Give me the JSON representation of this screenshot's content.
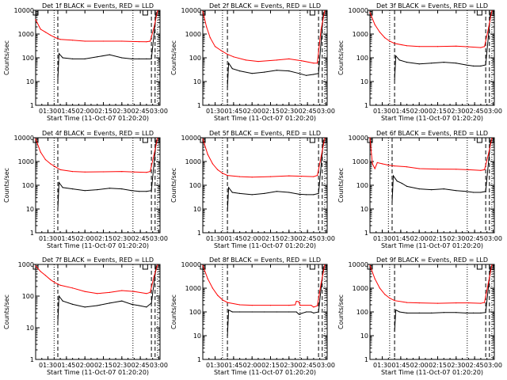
{
  "figure": {
    "background": "#ffffff",
    "colors": {
      "events": "#000000",
      "lld": "#ff0000",
      "axes": "#000000"
    }
  },
  "chart_data": [
    {
      "type": "line",
      "title": "Det 1f BLACK = Events, RED = LLD",
      "xlabel": "Start Time (11-Oct-07 01:20:20)",
      "ylabel": "Counts/sec",
      "xlim": [
        "01:20",
        "03:01"
      ],
      "ylim": [
        1,
        10000
      ],
      "log_y": true,
      "x_ticks": [
        "01:30",
        "01:45",
        "02:00",
        "02:15",
        "02:30",
        "02:45",
        "03:00"
      ],
      "y_ticks": [
        "1",
        "10",
        "100",
        "1000",
        "10000"
      ],
      "vlines_dotted": [
        "01:35",
        "02:39",
        "02:59"
      ],
      "vlines_dashed": [
        "01:38",
        "02:54",
        "02:57"
      ],
      "markers": [
        "01:20",
        "02:49",
        "02:59"
      ],
      "series": [
        {
          "name": "Events",
          "color": "#000000",
          "x": [
            "01:38",
            "01:39",
            "01:42",
            "01:50",
            "02:00",
            "02:10",
            "02:20",
            "02:30",
            "02:38",
            "02:44",
            "02:50",
            "02:54",
            "02:58"
          ],
          "y": [
            12,
            150,
            100,
            90,
            90,
            110,
            135,
            100,
            90,
            90,
            90,
            90,
            8000
          ]
        },
        {
          "name": "LLD",
          "color": "#ff0000",
          "x": [
            "01:20",
            "01:24",
            "01:28",
            "01:32",
            "01:36",
            "01:40",
            "01:50",
            "02:00",
            "02:15",
            "02:30",
            "02:44",
            "02:50",
            "02:53",
            "02:56",
            "02:59"
          ],
          "y": [
            4000,
            1600,
            1200,
            900,
            700,
            600,
            550,
            500,
            500,
            500,
            480,
            470,
            500,
            1800,
            9500
          ]
        }
      ]
    },
    {
      "type": "line",
      "title": "Det 2f BLACK = Events, RED = LLD",
      "xlabel": "Start Time (11-Oct-07 01:20:20)",
      "ylabel": "Counts/sec",
      "xlim": [
        "01:20",
        "03:01"
      ],
      "ylim": [
        1,
        10000
      ],
      "log_y": true,
      "x_ticks": [
        "01:30",
        "01:45",
        "02:00",
        "02:15",
        "02:30",
        "02:45",
        "03:00"
      ],
      "y_ticks": [
        "1",
        "10",
        "100",
        "1000",
        "10000"
      ],
      "vlines_dotted": [
        "01:36",
        "02:39",
        "02:59"
      ],
      "vlines_dashed": [
        "01:40",
        "02:54",
        "02:57"
      ],
      "markers": [
        "01:20",
        "02:49",
        "02:59"
      ],
      "series": [
        {
          "name": "Events",
          "color": "#000000",
          "x": [
            "01:40",
            "01:41",
            "01:44",
            "01:50",
            "02:00",
            "02:10",
            "02:20",
            "02:30",
            "02:38",
            "02:44",
            "02:50",
            "02:54",
            "02:58"
          ],
          "y": [
            6,
            60,
            35,
            28,
            22,
            25,
            30,
            28,
            22,
            18,
            20,
            22,
            8000
          ]
        },
        {
          "name": "LLD",
          "color": "#ff0000",
          "x": [
            "01:20",
            "01:23",
            "01:26",
            "01:30",
            "01:35",
            "01:40",
            "01:45",
            "01:55",
            "02:05",
            "02:20",
            "02:30",
            "02:40",
            "02:50",
            "02:53",
            "02:56",
            "02:59"
          ],
          "y": [
            9000,
            2000,
            700,
            300,
            200,
            140,
            110,
            80,
            70,
            80,
            90,
            75,
            60,
            60,
            1500,
            9500
          ]
        }
      ]
    },
    {
      "type": "line",
      "title": "Det 3f BLACK = Events, RED = LLD",
      "xlabel": "Start Time (11-Oct-07 01:20:20)",
      "ylabel": "Counts/sec",
      "xlim": [
        "01:20",
        "03:01"
      ],
      "ylim": [
        1,
        10000
      ],
      "log_y": true,
      "x_ticks": [
        "01:30",
        "01:45",
        "02:00",
        "02:15",
        "02:30",
        "02:45",
        "03:00"
      ],
      "y_ticks": [
        "1",
        "10",
        "100",
        "1000",
        "10000"
      ],
      "vlines_dotted": [
        "01:36",
        "02:39",
        "02:59"
      ],
      "vlines_dashed": [
        "01:40",
        "02:54",
        "02:57"
      ],
      "markers": [
        "01:20",
        "02:49",
        "02:59"
      ],
      "series": [
        {
          "name": "Events",
          "color": "#000000",
          "x": [
            "01:40",
            "01:41",
            "01:44",
            "01:50",
            "02:00",
            "02:10",
            "02:20",
            "02:30",
            "02:38",
            "02:44",
            "02:50",
            "02:54",
            "02:58"
          ],
          "y": [
            12,
            120,
            80,
            65,
            55,
            60,
            65,
            60,
            50,
            45,
            45,
            50,
            8000
          ]
        },
        {
          "name": "LLD",
          "color": "#ff0000",
          "x": [
            "01:20",
            "01:24",
            "01:28",
            "01:32",
            "01:36",
            "01:40",
            "01:50",
            "02:00",
            "02:15",
            "02:30",
            "02:40",
            "02:50",
            "02:53",
            "02:56",
            "02:59"
          ],
          "y": [
            8000,
            2500,
            1200,
            700,
            500,
            400,
            320,
            300,
            300,
            310,
            290,
            270,
            300,
            1500,
            9500
          ]
        }
      ]
    },
    {
      "type": "line",
      "title": "Det 4f BLACK = Events, RED = LLD",
      "xlabel": "Start Time (11-Oct-07 01:20:20)",
      "ylabel": "Counts/sec",
      "xlim": [
        "01:20",
        "03:01"
      ],
      "ylim": [
        1,
        10000
      ],
      "log_y": true,
      "x_ticks": [
        "01:30",
        "01:45",
        "02:00",
        "02:15",
        "02:30",
        "02:45",
        "03:00"
      ],
      "y_ticks": [
        "1",
        "10",
        "100",
        "1000",
        "10000"
      ],
      "vlines_dotted": [
        "01:35",
        "02:39",
        "02:59"
      ],
      "vlines_dashed": [
        "01:38",
        "02:54",
        "02:57"
      ],
      "markers": [
        "01:20",
        "02:49",
        "02:59"
      ],
      "series": [
        {
          "name": "Events",
          "color": "#000000",
          "x": [
            "01:38",
            "01:39",
            "01:42",
            "01:50",
            "02:00",
            "02:10",
            "02:20",
            "02:30",
            "02:38",
            "02:44",
            "02:50",
            "02:54",
            "02:58"
          ],
          "y": [
            10,
            130,
            80,
            70,
            60,
            65,
            75,
            70,
            60,
            55,
            55,
            60,
            8000
          ]
        },
        {
          "name": "LLD",
          "color": "#ff0000",
          "x": [
            "01:20",
            "01:24",
            "01:28",
            "01:32",
            "01:36",
            "01:40",
            "01:50",
            "02:00",
            "02:15",
            "02:30",
            "02:40",
            "02:50",
            "02:53",
            "02:56",
            "02:59"
          ],
          "y": [
            9000,
            2500,
            1200,
            800,
            600,
            450,
            380,
            360,
            370,
            380,
            360,
            350,
            380,
            1800,
            9500
          ]
        }
      ]
    },
    {
      "type": "line",
      "title": "Det 5f BLACK = Events, RED = LLD",
      "xlabel": "Start Time (11-Oct-07 01:20:20)",
      "ylabel": "Counts/sec",
      "xlim": [
        "01:20",
        "03:01"
      ],
      "ylim": [
        1,
        10000
      ],
      "log_y": true,
      "x_ticks": [
        "01:30",
        "01:45",
        "02:00",
        "02:15",
        "02:30",
        "02:45",
        "03:00"
      ],
      "y_ticks": [
        "1",
        "10",
        "100",
        "1000",
        "10000"
      ],
      "vlines_dotted": [
        "01:36",
        "02:39",
        "02:59"
      ],
      "vlines_dashed": [
        "01:40",
        "02:54",
        "02:57"
      ],
      "markers": [
        "01:20",
        "02:49",
        "02:59"
      ],
      "series": [
        {
          "name": "Events",
          "color": "#000000",
          "x": [
            "01:40",
            "01:41",
            "01:44",
            "01:50",
            "02:00",
            "02:10",
            "02:20",
            "02:30",
            "02:38",
            "02:44",
            "02:50",
            "02:54",
            "02:58"
          ],
          "y": [
            8,
            80,
            50,
            45,
            40,
            45,
            55,
            50,
            42,
            40,
            40,
            45,
            8000
          ]
        },
        {
          "name": "LLD",
          "color": "#ff0000",
          "x": [
            "01:20",
            "01:24",
            "01:28",
            "01:32",
            "01:36",
            "01:40",
            "01:50",
            "02:00",
            "02:15",
            "02:30",
            "02:40",
            "02:50",
            "02:53",
            "02:56",
            "02:59"
          ],
          "y": [
            9000,
            2000,
            800,
            450,
            320,
            260,
            230,
            220,
            230,
            250,
            240,
            230,
            260,
            1500,
            9500
          ]
        }
      ]
    },
    {
      "type": "line",
      "title": "Det 6f BLACK = Events, RED = LLD",
      "xlabel": "Start Time (11-Oct-07 01:20:20)",
      "ylabel": "Counts/sec",
      "xlim": [
        "01:20",
        "03:01"
      ],
      "ylim": [
        1,
        10000
      ],
      "log_y": true,
      "x_ticks": [
        "01:30",
        "01:45",
        "02:00",
        "02:15",
        "02:30",
        "02:45",
        "03:00"
      ],
      "y_ticks": [
        "1",
        "10",
        "100",
        "1000",
        "10000"
      ],
      "vlines_dotted": [
        "01:35",
        "02:39",
        "02:59"
      ],
      "vlines_dashed": [
        "01:38",
        "02:54",
        "02:57"
      ],
      "markers": [
        "01:20",
        "02:49",
        "02:59"
      ],
      "series": [
        {
          "name": "Events",
          "color": "#000000",
          "x": [
            "01:38",
            "01:39",
            "01:42",
            "01:46",
            "01:50",
            "02:00",
            "02:10",
            "02:20",
            "02:30",
            "02:38",
            "02:44",
            "02:50",
            "02:54",
            "02:58"
          ],
          "y": [
            20,
            250,
            150,
            120,
            90,
            70,
            65,
            70,
            60,
            55,
            50,
            50,
            55,
            8000
          ]
        },
        {
          "name": "LLD",
          "color": "#ff0000",
          "x": [
            "01:20",
            "01:22",
            "01:24",
            "01:26",
            "01:30",
            "01:35",
            "01:40",
            "01:50",
            "02:00",
            "02:15",
            "02:30",
            "02:40",
            "02:50",
            "02:53",
            "02:56",
            "02:59"
          ],
          "y": [
            10000,
            800,
            500,
            900,
            800,
            700,
            650,
            600,
            500,
            480,
            470,
            450,
            420,
            450,
            1800,
            9500
          ]
        }
      ]
    },
    {
      "type": "line",
      "title": "Det 7f BLACK = Events, RED = LLD",
      "xlabel": "Start Time (11-Oct-07 01:20:20)",
      "ylabel": "Counts/sec",
      "xlim": [
        "01:20",
        "03:01"
      ],
      "ylim": [
        1,
        1000
      ],
      "log_y": true,
      "x_ticks": [
        "01:30",
        "01:45",
        "02:00",
        "02:15",
        "02:30",
        "02:45",
        "03:00"
      ],
      "y_ticks": [
        "1",
        "10",
        "100",
        "1000"
      ],
      "vlines_dotted": [
        "01:35",
        "02:39",
        "02:59"
      ],
      "vlines_dashed": [
        "01:38",
        "02:54",
        "02:57"
      ],
      "markers": [
        "01:20",
        "02:49",
        "02:59"
      ],
      "series": [
        {
          "name": "Events",
          "color": "#000000",
          "x": [
            "01:38",
            "01:39",
            "01:42",
            "01:50",
            "02:00",
            "02:10",
            "02:20",
            "02:30",
            "02:38",
            "02:44",
            "02:50",
            "02:54",
            "02:58"
          ],
          "y": [
            15,
            100,
            70,
            55,
            45,
            50,
            60,
            70,
            55,
            50,
            45,
            60,
            900
          ]
        },
        {
          "name": "LLD",
          "color": "#ff0000",
          "x": [
            "01:20",
            "01:24",
            "01:28",
            "01:32",
            "01:36",
            "01:40",
            "01:50",
            "02:00",
            "02:10",
            "02:20",
            "02:30",
            "02:40",
            "02:50",
            "02:53",
            "02:56",
            "02:59"
          ],
          "y": [
            900,
            600,
            450,
            330,
            260,
            220,
            180,
            140,
            120,
            130,
            150,
            140,
            120,
            130,
            400,
            950
          ]
        }
      ]
    },
    {
      "type": "line",
      "title": "Det 8f BLACK = Events, RED = LLD",
      "xlabel": "Start Time (11-Oct-07 01:20:20)",
      "ylabel": "Counts/sec",
      "xlim": [
        "01:20",
        "03:01"
      ],
      "ylim": [
        1,
        10000
      ],
      "log_y": true,
      "x_ticks": [
        "01:30",
        "01:45",
        "02:00",
        "02:15",
        "02:30",
        "02:45",
        "03:00"
      ],
      "y_ticks": [
        "1",
        "10",
        "100",
        "1000",
        "10000"
      ],
      "vlines_dotted": [
        "01:36",
        "02:39",
        "02:59"
      ],
      "vlines_dashed": [
        "01:40",
        "02:54",
        "02:57"
      ],
      "markers": [
        "01:20",
        "02:49",
        "02:59"
      ],
      "series": [
        {
          "name": "Events",
          "color": "#000000",
          "x": [
            "01:40",
            "01:41",
            "01:44",
            "01:50",
            "02:00",
            "02:10",
            "02:20",
            "02:30",
            "02:36",
            "02:38",
            "02:44",
            "02:48",
            "02:50",
            "02:54",
            "02:58"
          ],
          "y": [
            10,
            120,
            100,
            100,
            100,
            100,
            100,
            100,
            100,
            80,
            100,
            100,
            90,
            100,
            8000
          ]
        },
        {
          "name": "LLD",
          "color": "#ff0000",
          "x": [
            "01:20",
            "01:24",
            "01:28",
            "01:32",
            "01:36",
            "01:40",
            "01:50",
            "02:00",
            "02:15",
            "02:30",
            "02:35",
            "02:36",
            "02:38",
            "02:39",
            "02:48",
            "02:50",
            "02:53",
            "02:56",
            "02:59"
          ],
          "y": [
            9000,
            2500,
            1000,
            500,
            320,
            250,
            200,
            190,
            190,
            190,
            200,
            280,
            270,
            190,
            190,
            160,
            180,
            1500,
            9500
          ]
        }
      ]
    },
    {
      "type": "line",
      "title": "Det 9f BLACK = Events, RED = LLD",
      "xlabel": "Start Time (11-Oct-07 01:20:20)",
      "ylabel": "Counts/sec",
      "xlim": [
        "01:20",
        "03:01"
      ],
      "ylim": [
        1,
        10000
      ],
      "log_y": true,
      "x_ticks": [
        "01:30",
        "01:45",
        "02:00",
        "02:15",
        "02:30",
        "02:45",
        "03:00"
      ],
      "y_ticks": [
        "1",
        "10",
        "100",
        "1000",
        "10000"
      ],
      "vlines_dotted": [
        "01:36",
        "02:39",
        "02:59"
      ],
      "vlines_dashed": [
        "01:40",
        "02:54",
        "02:57"
      ],
      "markers": [
        "01:20",
        "02:49",
        "02:59"
      ],
      "series": [
        {
          "name": "Events",
          "color": "#000000",
          "x": [
            "01:40",
            "01:41",
            "01:44",
            "01:50",
            "02:00",
            "02:10",
            "02:20",
            "02:30",
            "02:38",
            "02:44",
            "02:50",
            "02:54",
            "02:58"
          ],
          "y": [
            15,
            120,
            100,
            90,
            90,
            90,
            95,
            95,
            90,
            90,
            90,
            95,
            8000
          ]
        },
        {
          "name": "LLD",
          "color": "#ff0000",
          "x": [
            "01:20",
            "01:24",
            "01:28",
            "01:32",
            "01:36",
            "01:40",
            "01:50",
            "02:00",
            "02:15",
            "02:30",
            "02:40",
            "02:50",
            "02:53",
            "02:56",
            "02:59"
          ],
          "y": [
            9000,
            2500,
            1000,
            550,
            380,
            300,
            250,
            240,
            230,
            240,
            240,
            230,
            250,
            1500,
            9500
          ]
        }
      ]
    }
  ]
}
